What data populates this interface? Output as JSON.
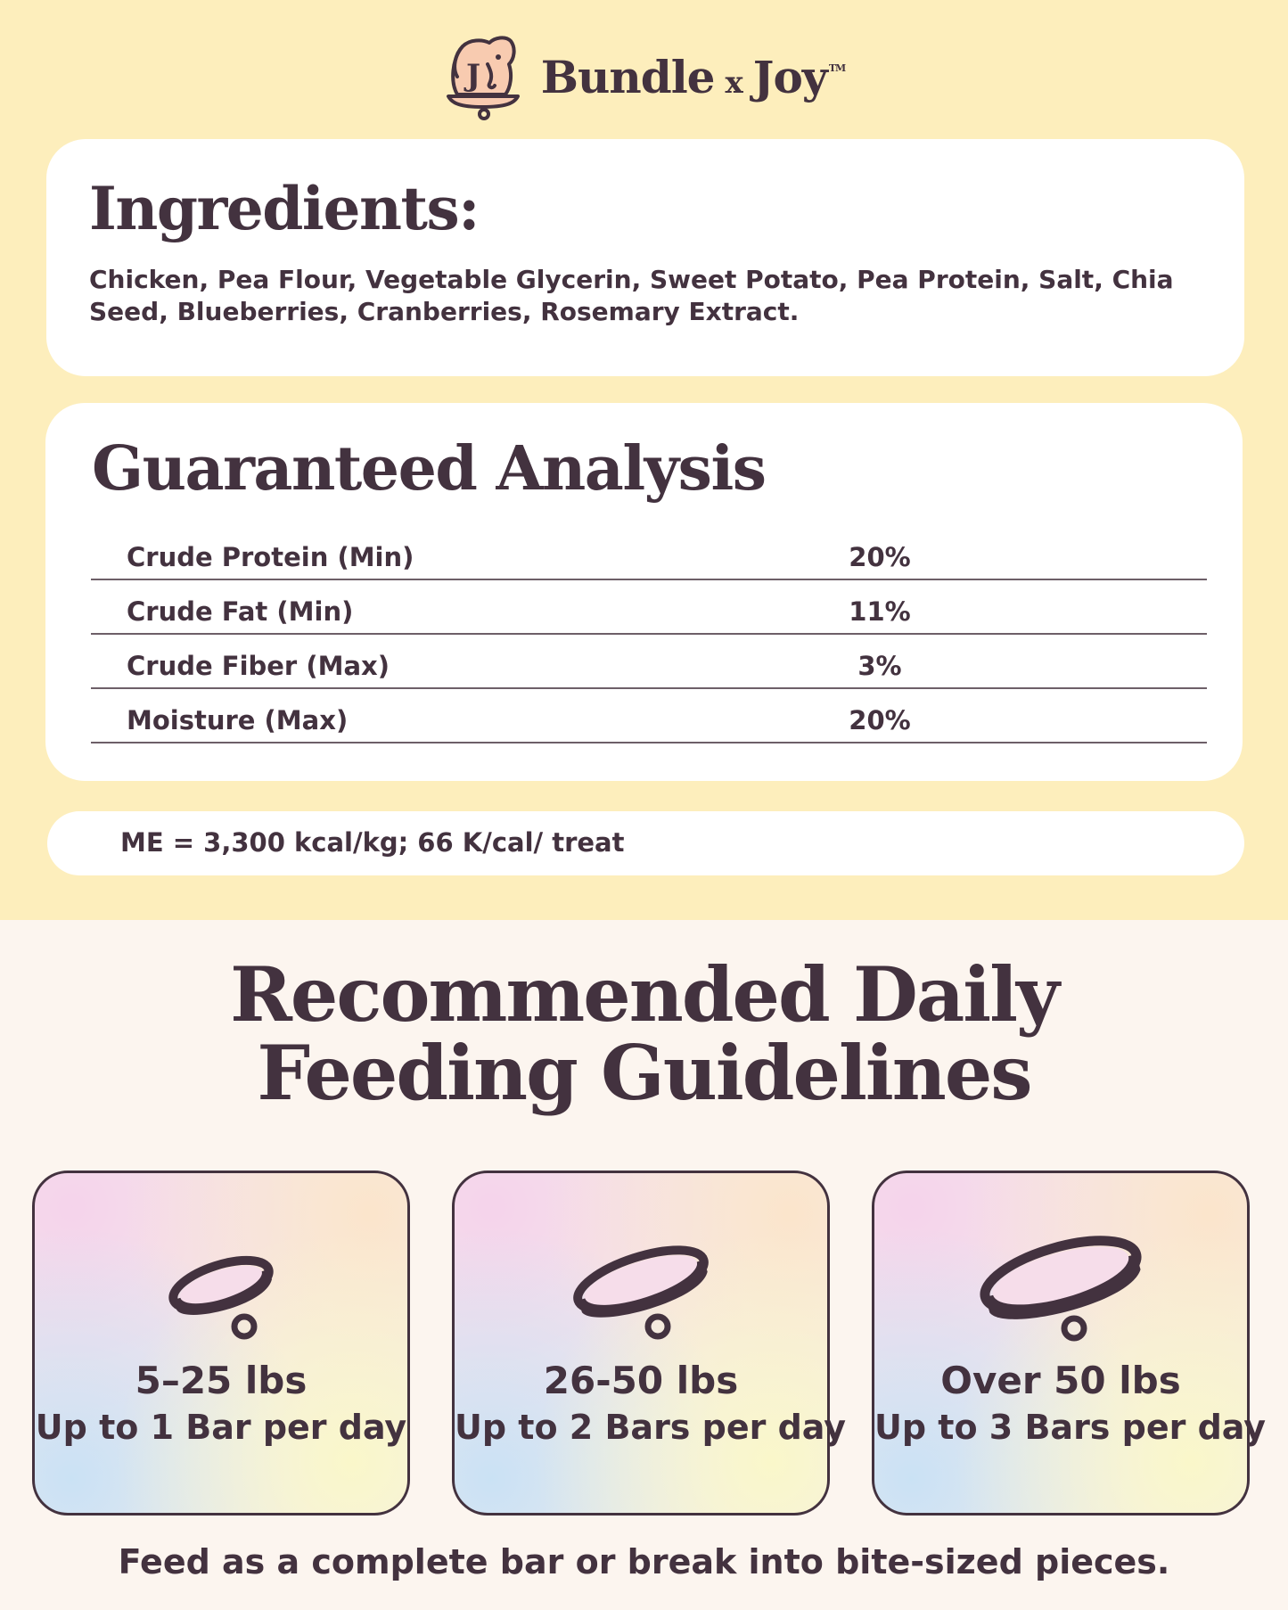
{
  "brand": {
    "name_left": "Bundle",
    "name_x": "x",
    "name_right": "Joy",
    "trademark": "TM"
  },
  "ingredients": {
    "title": "Ingredients:",
    "text": "Chicken, Pea Flour, Vegetable Glycerin, Sweet Potato, Pea Protein, Salt, Chia Seed, Blueberries, Cranberries, Rosemary Extract."
  },
  "analysis": {
    "title": "Guaranteed Analysis",
    "rows": [
      {
        "label": "Crude Protein (Min)",
        "value": "20%"
      },
      {
        "label": "Crude Fat (Min)",
        "value": "11%"
      },
      {
        "label": "Crude Fiber (Max)",
        "value": "3%"
      },
      {
        "label": "Moisture (Max)",
        "value": "20%"
      }
    ]
  },
  "energy": {
    "text": "ME = 3,300 kcal/kg; 66 K/cal/ treat"
  },
  "feeding": {
    "title_line1": "Recommended Daily",
    "title_line2": "Feeding Guidelines",
    "cards": [
      {
        "weight": "5–25 lbs",
        "amount": "Up to 1 Bar per day",
        "icon": "small-collar-icon"
      },
      {
        "weight": "26-50 lbs",
        "amount": "Up to 2 Bars per day",
        "icon": "medium-collar-icon"
      },
      {
        "weight": "Over 50 lbs",
        "amount": "Up to 3 Bars per day",
        "icon": "large-collar-icon"
      }
    ],
    "footnote": "Feed as a complete bar or break into bite-sized pieces."
  },
  "colors": {
    "top_background": "#fdeebc",
    "bottom_background": "#fcf5ef",
    "text": "#43323f",
    "card": "#ffffff"
  }
}
